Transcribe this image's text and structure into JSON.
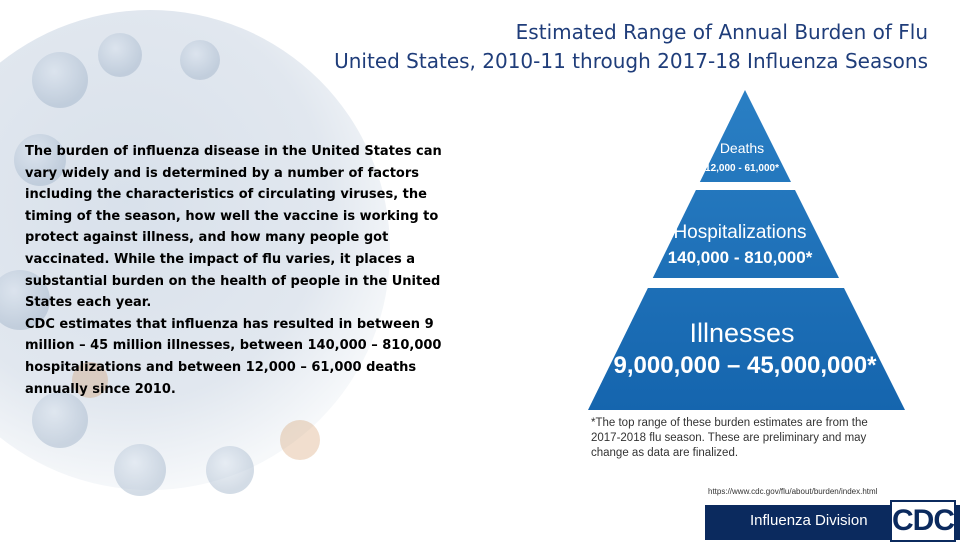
{
  "title": {
    "lines": [
      "Estimated Range of Annual Burden of Flu",
      "United States, 2010-11 through 2017-18 Influenza Seasons"
    ]
  },
  "body": {
    "paragraphs": [
      [
        "The burden of influenza disease in the United States can",
        "vary widely and is determined by a number of factors",
        "including the characteristics of circulating viruses, the",
        "timing of the season, how well the vaccine is working to",
        "protect against illness, and how many people got",
        "vaccinated. While the impact of flu varies, it places a",
        "substantial burden on the health of people in the United",
        "States each year."
      ],
      [
        "CDC estimates that influenza has resulted in between 9",
        "million – 45 million illnesses, between 140,000 – 810,000",
        "hospitalizations and between 12,000 – 61,000 deaths",
        "annually since 2010."
      ]
    ]
  },
  "pyramid": {
    "tiers": [
      {
        "label": "Deaths",
        "range": "12,000 - 61,000*"
      },
      {
        "label": "Hospitalizations",
        "range": "140,000 - 810,000*"
      },
      {
        "label": "Illnesses",
        "range": "9,000,000 – 45,000,000*"
      }
    ]
  },
  "footnote": {
    "lines": [
      "*The top range of these burden estimates are from the",
      "2017-2018 flu season. These are preliminary and may",
      "change as data are finalized."
    ]
  },
  "source_url": "https://www.cdc.gov/flu/about/burden/index.html",
  "footer": {
    "division": "Influenza Division",
    "logo": "CDC"
  }
}
